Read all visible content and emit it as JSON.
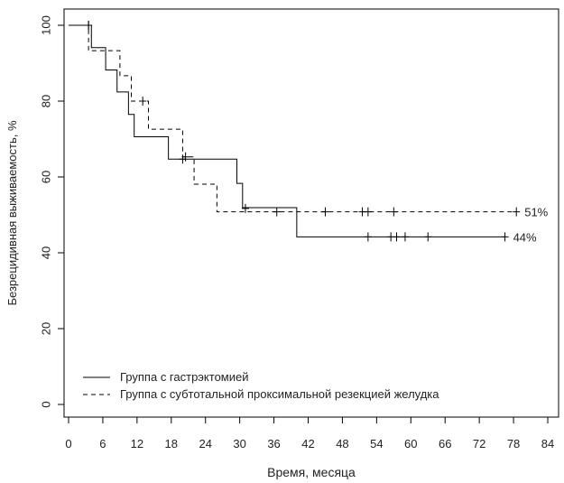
{
  "chart_data": {
    "type": "line",
    "title": "",
    "xlabel": "Время, месяца",
    "ylabel": "Безрецидивная выживаемость, %",
    "xlim": [
      0,
      84
    ],
    "ylim": [
      0,
      100
    ],
    "xticks": [
      0,
      6,
      12,
      18,
      24,
      30,
      36,
      42,
      48,
      54,
      60,
      66,
      72,
      78,
      84
    ],
    "yticks": [
      0,
      20,
      40,
      60,
      80,
      100
    ],
    "grid": false,
    "legend": {
      "placement": "bottom-left"
    },
    "series": [
      {
        "name": "Группа с гастрэктомией",
        "style": "solid",
        "color": "#000000",
        "steps": [
          [
            0,
            100
          ],
          [
            4,
            94.1
          ],
          [
            6.5,
            88.2
          ],
          [
            8.5,
            82.4
          ],
          [
            10.5,
            76.5
          ],
          [
            11.5,
            70.6
          ],
          [
            17.5,
            64.7
          ],
          [
            29.5,
            58.3
          ],
          [
            30.5,
            51.9
          ],
          [
            40,
            44.2
          ],
          [
            76.5,
            44.2
          ]
        ],
        "censored": [
          [
            3.5,
            100
          ],
          [
            20,
            64.7
          ],
          [
            52.5,
            44.2
          ],
          [
            56.5,
            44.2
          ],
          [
            57.5,
            44.2
          ],
          [
            59,
            44.2
          ],
          [
            63,
            44.2
          ],
          [
            76.5,
            44.2
          ]
        ],
        "end_label": "44%"
      },
      {
        "name": "Группа с субтотальной проксимальной резекцией желудка",
        "style": "dashed",
        "color": "#000000",
        "steps": [
          [
            0,
            100
          ],
          [
            3.5,
            93.3
          ],
          [
            9,
            86.7
          ],
          [
            11,
            80
          ],
          [
            14,
            72.6
          ],
          [
            20,
            65.3
          ],
          [
            22,
            58.1
          ],
          [
            26,
            50.8
          ],
          [
            78.5,
            50.8
          ]
        ],
        "censored": [
          [
            3.5,
            100
          ],
          [
            13,
            80
          ],
          [
            20.5,
            65.3
          ],
          [
            31,
            51.7
          ],
          [
            36.5,
            50.8
          ],
          [
            45,
            50.8
          ],
          [
            51.5,
            50.8
          ],
          [
            52.5,
            50.8
          ],
          [
            57,
            50.8
          ],
          [
            78.5,
            50.8
          ]
        ],
        "end_label": "51%"
      }
    ]
  }
}
